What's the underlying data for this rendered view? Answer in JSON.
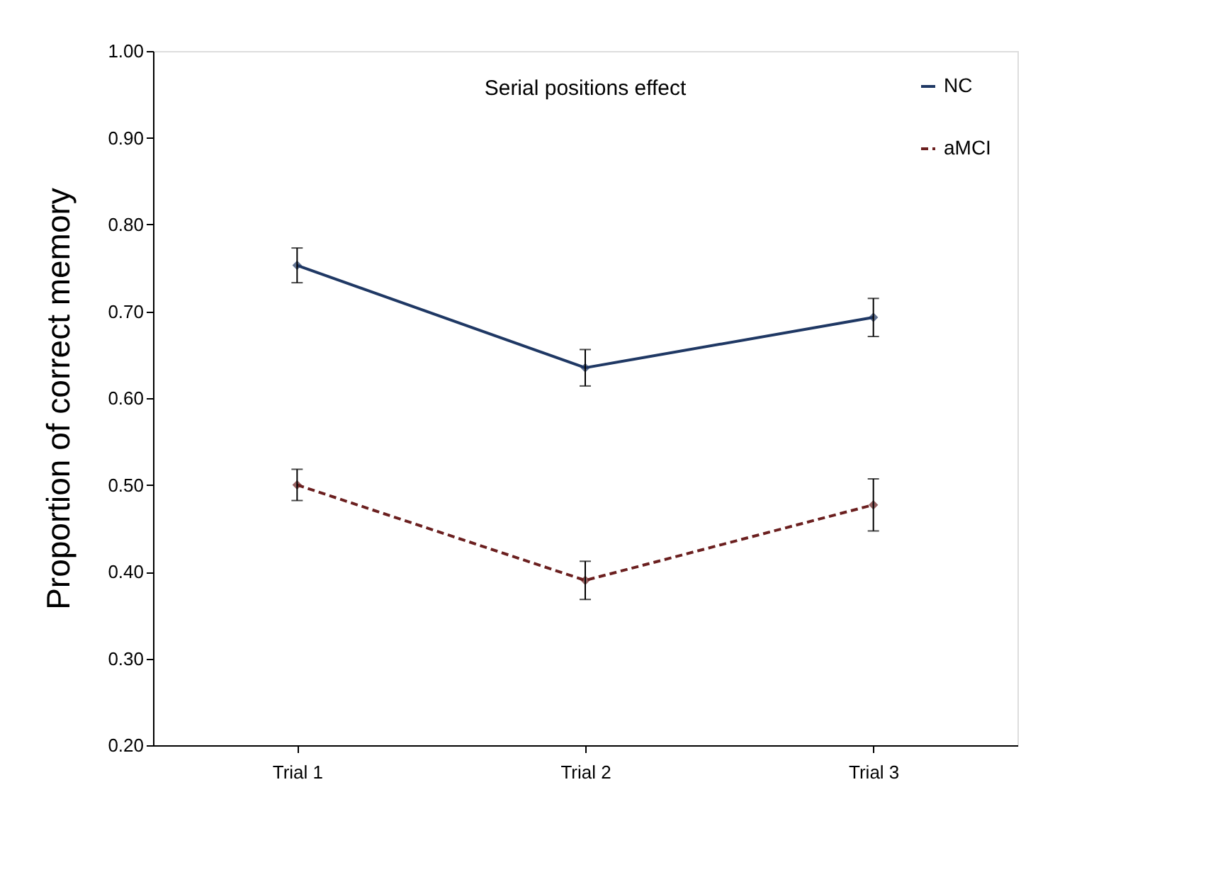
{
  "chart_data": {
    "type": "line",
    "title": "Serial positions effect",
    "ylabel": "Proportion of correct memory",
    "categories": [
      "Trial 1",
      "Trial 2",
      "Trial 3"
    ],
    "series": [
      {
        "name": "NC",
        "color": "#1f3864",
        "values": [
          0.753,
          0.635,
          0.693
        ],
        "errors": [
          0.02,
          0.021,
          0.022
        ],
        "line_style": "solid"
      },
      {
        "name": "aMCI",
        "color": "#6b1f1f",
        "values": [
          0.5,
          0.39,
          0.477
        ],
        "errors": [
          0.018,
          0.022,
          0.03
        ],
        "line_style": "dashed"
      }
    ],
    "ylim": [
      0.2,
      1.0
    ],
    "yticks": [
      {
        "value": 0.2,
        "label": "0.20"
      },
      {
        "value": 0.3,
        "label": "0.30"
      },
      {
        "value": 0.4,
        "label": "0.40"
      },
      {
        "value": 0.5,
        "label": "0.50"
      },
      {
        "value": 0.6,
        "label": "0.60"
      },
      {
        "value": 0.7,
        "label": "0.70"
      },
      {
        "value": 0.8,
        "label": "0.80"
      },
      {
        "value": 0.9,
        "label": "0.90"
      },
      {
        "value": 1.0,
        "label": "1.00"
      }
    ],
    "marker": "diamond",
    "grid": false,
    "legend": "top right"
  }
}
